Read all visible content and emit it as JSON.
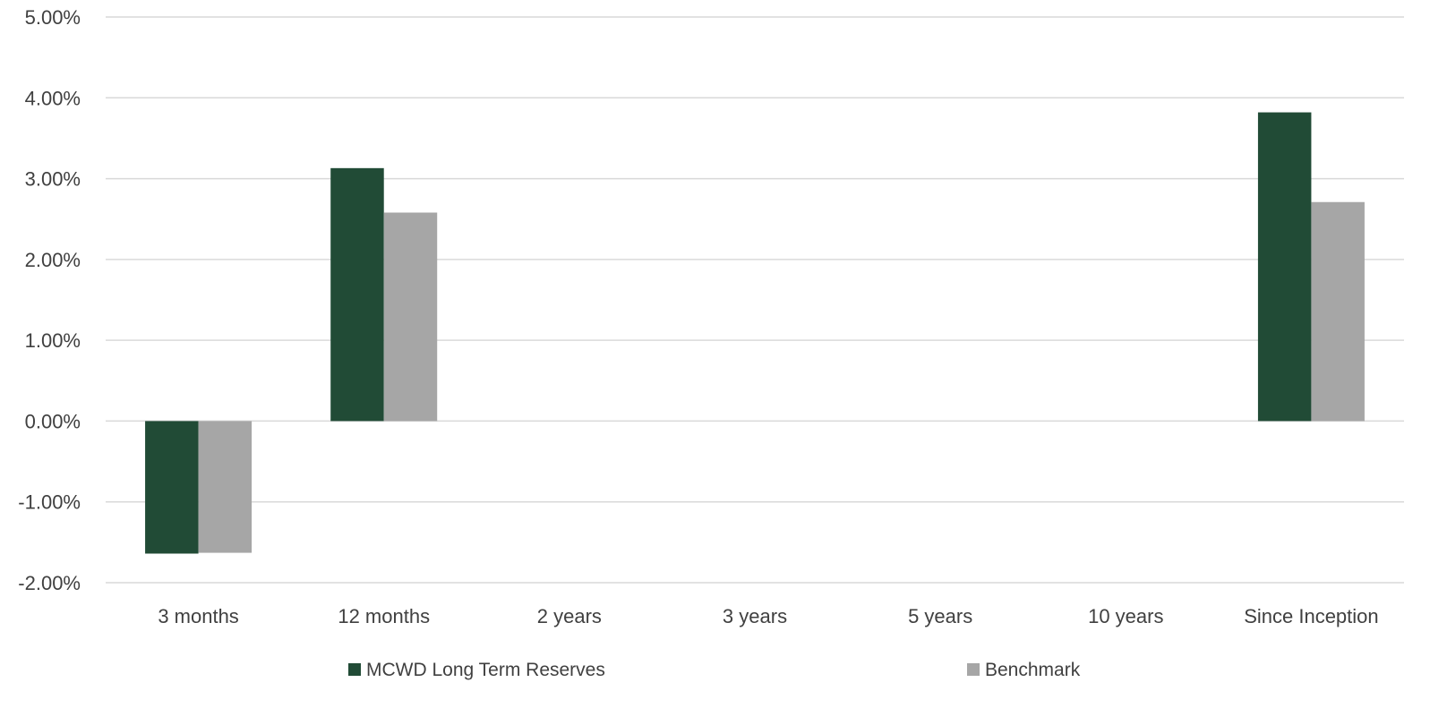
{
  "chart_data": {
    "type": "bar",
    "categories": [
      "3 months",
      "12 months",
      "2 years",
      "3 years",
      "5 years",
      "10 years",
      "Since Inception"
    ],
    "series": [
      {
        "name": "MCWD Long Term Reserves",
        "color": "#214b36",
        "values": [
          -1.64,
          3.13,
          null,
          null,
          null,
          null,
          3.82
        ]
      },
      {
        "name": "Benchmark",
        "color": "#a6a6a6",
        "values": [
          -1.63,
          2.58,
          null,
          null,
          null,
          null,
          2.71
        ]
      }
    ],
    "ylim": [
      -2,
      5
    ],
    "y_ticks": [
      5,
      4,
      3,
      2,
      1,
      0,
      -1,
      -2
    ],
    "y_tick_labels": [
      "5.00%",
      "4.00%",
      "3.00%",
      "2.00%",
      "1.00%",
      "0.00%",
      "-1.00%",
      "-2.00%"
    ],
    "grid": true,
    "gridline_color": "#d9d9d9",
    "legend_position": "bottom",
    "title": "",
    "xlabel": "",
    "ylabel": ""
  }
}
